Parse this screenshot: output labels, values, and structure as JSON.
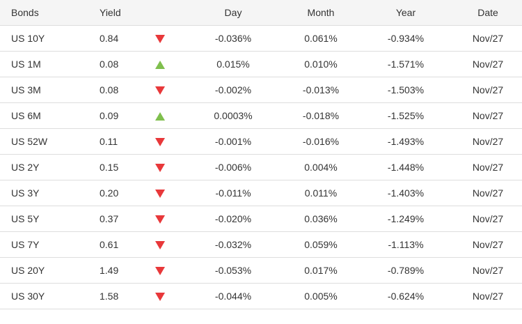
{
  "table": {
    "headers": {
      "bonds": "Bonds",
      "yield": "Yield",
      "day": "Day",
      "month": "Month",
      "year": "Year",
      "date": "Date"
    },
    "colors": {
      "down": "#e8383a",
      "up": "#7fbf4d"
    },
    "rows": [
      {
        "name": "US 10Y",
        "yield": "0.84",
        "direction": "down",
        "day": "-0.036%",
        "month": "0.061%",
        "year": "-0.934%",
        "date": "Nov/27"
      },
      {
        "name": "US 1M",
        "yield": "0.08",
        "direction": "up",
        "day": "0.015%",
        "month": "0.010%",
        "year": "-1.571%",
        "date": "Nov/27"
      },
      {
        "name": "US 3M",
        "yield": "0.08",
        "direction": "down",
        "day": "-0.002%",
        "month": "-0.013%",
        "year": "-1.503%",
        "date": "Nov/27"
      },
      {
        "name": "US 6M",
        "yield": "0.09",
        "direction": "up",
        "day": "0.0003%",
        "month": "-0.018%",
        "year": "-1.525%",
        "date": "Nov/27"
      },
      {
        "name": "US 52W",
        "yield": "0.11",
        "direction": "down",
        "day": "-0.001%",
        "month": "-0.016%",
        "year": "-1.493%",
        "date": "Nov/27"
      },
      {
        "name": "US 2Y",
        "yield": "0.15",
        "direction": "down",
        "day": "-0.006%",
        "month": "0.004%",
        "year": "-1.448%",
        "date": "Nov/27"
      },
      {
        "name": "US 3Y",
        "yield": "0.20",
        "direction": "down",
        "day": "-0.011%",
        "month": "0.011%",
        "year": "-1.403%",
        "date": "Nov/27"
      },
      {
        "name": "US 5Y",
        "yield": "0.37",
        "direction": "down",
        "day": "-0.020%",
        "month": "0.036%",
        "year": "-1.249%",
        "date": "Nov/27"
      },
      {
        "name": "US 7Y",
        "yield": "0.61",
        "direction": "down",
        "day": "-0.032%",
        "month": "0.059%",
        "year": "-1.113%",
        "date": "Nov/27"
      },
      {
        "name": "US 20Y",
        "yield": "1.49",
        "direction": "down",
        "day": "-0.053%",
        "month": "0.017%",
        "year": "-0.789%",
        "date": "Nov/27"
      },
      {
        "name": "US 30Y",
        "yield": "1.58",
        "direction": "down",
        "day": "-0.044%",
        "month": "0.005%",
        "year": "-0.624%",
        "date": "Nov/27"
      }
    ]
  }
}
